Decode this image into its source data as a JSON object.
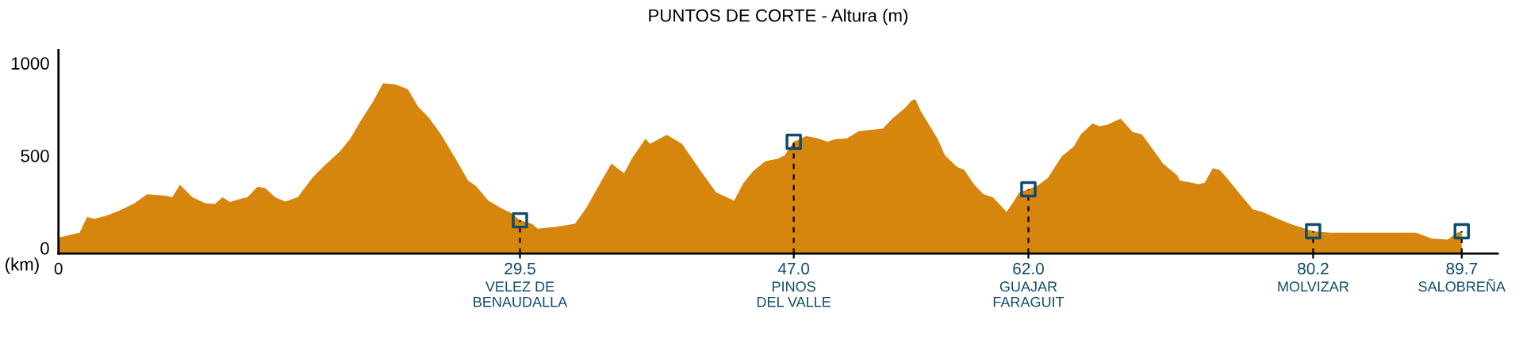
{
  "chart_data": {
    "type": "area",
    "title": "PUNTOS DE CORTE - Altura (m)",
    "xlabel": "(km)",
    "xlim": [
      0,
      92
    ],
    "ylim": [
      -30,
      1070
    ],
    "yticks": [
      0,
      500,
      1000
    ],
    "xticks": [
      0,
      29.5,
      {
        "value": 47,
        "label": "47.0"
      },
      {
        "value": 62,
        "label": "62.0"
      },
      80.2,
      89.7
    ],
    "grid": false,
    "legend": false,
    "series": [
      {
        "color": "#d6860c",
        "x": [
          0,
          1.35,
          1.83,
          2.31,
          3.11,
          3.91,
          4.87,
          5.67,
          6.79,
          7.28,
          7.76,
          8.56,
          9.36,
          10.0,
          10.48,
          10.96,
          11.6,
          12.08,
          12.72,
          13.21,
          13.85,
          14.49,
          15.29,
          16.25,
          16.89,
          18.01,
          18.65,
          19.29,
          20.1,
          20.74,
          21.54,
          22.34,
          22.98,
          23.62,
          24.42,
          25.38,
          26.19,
          26.67,
          27.47,
          28.27,
          28.91,
          29.5,
          30.26,
          30.63,
          31.85,
          33.02,
          33.74,
          35.34,
          36.16,
          36.65,
          37.52,
          37.81,
          38.89,
          39.85,
          41.16,
          42.03,
          43.19,
          43.77,
          44.43,
          45.19,
          45.96,
          46.42,
          47,
          47.8,
          48.56,
          49.17,
          49.63,
          50.4,
          51.16,
          52.69,
          53.3,
          54.07,
          54.53,
          54.77,
          55.14,
          56.21,
          56.67,
          57.44,
          57.9,
          58.51,
          59.12,
          59.74,
          60.6,
          60.97,
          61.42,
          62,
          62.63,
          63.24,
          64.14,
          64.89,
          65.35,
          66.1,
          66.55,
          67.0,
          67.9,
          68.66,
          69.26,
          70.61,
          71.52,
          71.67,
          72.87,
          73.27,
          73.78,
          74.23,
          74.69,
          75.44,
          76.34,
          76.95,
          77.85,
          78.76,
          80.2,
          81.3,
          84.34,
          86.78,
          87.79,
          88.8,
          89.41,
          89.7
        ],
        "values": [
          56,
          83,
          168,
          158,
          176,
          203,
          243,
          291,
          283,
          275,
          342,
          275,
          243,
          238,
          275,
          249,
          265,
          275,
          332,
          324,
          275,
          251,
          275,
          382,
          436,
          524,
          591,
          684,
          791,
          890,
          885,
          858,
          765,
          711,
          618,
          484,
          364,
          337,
          257,
          217,
          190,
          150,
          131,
          104,
          115,
          131,
          217,
          457,
          404,
          484,
          591,
          564,
          612,
          564,
          404,
          302,
          257,
          350,
          418,
          470,
          483,
          501,
          575,
          606,
          593,
          575,
          588,
          593,
          632,
          645,
          700,
          753,
          797,
          805,
          737,
          588,
          501,
          439,
          423,
          345,
          292,
          274,
          195,
          240,
          300,
          318,
          340,
          379,
          496,
          548,
          614,
          674,
          658,
          666,
          700,
          627,
          614,
          457,
          392,
          366,
          345,
          353,
          431,
          423,
          379,
          300,
          209,
          195,
          161,
          130,
          91,
          83,
          83,
          83,
          51,
          46,
          83,
          91
        ]
      },
      {
        "type": "scatter",
        "marker": "square",
        "color": "#0f4c6e",
        "x": [
          29.5,
          47,
          62,
          80.2,
          89.7
        ],
        "values": [
          150,
          575,
          318,
          91,
          91
        ]
      }
    ],
    "ref_lines": [
      {
        "axis": "x",
        "value": 29.5,
        "label": "VELEZ DE\nBENAUDALLA",
        "color": "#000000",
        "line_style": "dashed"
      },
      {
        "axis": "x",
        "value": 47,
        "label": "PINOS\nDEL VALLE",
        "color": "#000000",
        "line_style": "dashed"
      },
      {
        "axis": "x",
        "value": 62,
        "label": "GUAJAR\nFARAGUIT",
        "color": "#000000",
        "line_style": "dashed"
      },
      {
        "axis": "x",
        "value": 80.2,
        "label": "MOLVIZAR",
        "color": "#000000",
        "line_style": "dashed"
      },
      {
        "axis": "x",
        "value": 89.7,
        "label": "SALOBREÑA",
        "color": "#000000",
        "line_style": "dashed"
      }
    ]
  }
}
